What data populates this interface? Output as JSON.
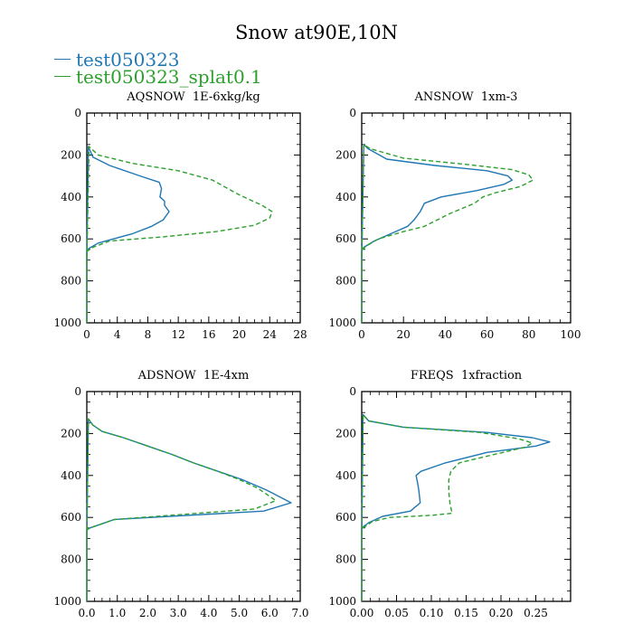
{
  "figure": {
    "title": "Snow at90E,10N",
    "legend": [
      {
        "label": "test050323",
        "color": "#1f77b4",
        "dash": "solid"
      },
      {
        "label": "test050323_splat0.1",
        "color": "#2ca02c",
        "dash": "dashed"
      }
    ]
  },
  "chart_data": [
    {
      "type": "line",
      "title": "AQSNOW  1E-6xkg/kg",
      "xlabel": "",
      "ylabel": "",
      "xlim": [
        0,
        28
      ],
      "ylim": [
        1000,
        0
      ],
      "xticks": [
        0,
        4,
        8,
        12,
        16,
        20,
        24,
        28
      ],
      "xtick_labels": [
        "0",
        "4",
        "8",
        "12",
        "16",
        "20",
        "24",
        "28"
      ],
      "yticks": [
        0,
        200,
        400,
        600,
        800,
        1000
      ],
      "ytick_labels": [
        "0",
        "200",
        "400",
        "600",
        "800",
        "1000"
      ],
      "series": [
        {
          "name": "test050323",
          "color": "#1f77b4",
          "dash": "solid",
          "x": [
            0,
            0,
            0.2,
            0.8,
            3,
            7,
            9.5,
            9.8,
            9.6,
            10.2,
            10.2,
            10.8,
            10,
            8.5,
            6,
            1.5,
            0.3,
            0,
            0,
            0
          ],
          "y": [
            1000,
            700,
            160,
            210,
            250,
            300,
            330,
            360,
            400,
            420,
            440,
            470,
            510,
            540,
            575,
            620,
            645,
            655,
            700,
            1000
          ]
        },
        {
          "name": "test050323_splat0.1",
          "color": "#2ca02c",
          "dash": "dashed",
          "x": [
            0,
            0,
            0.3,
            1.5,
            6,
            12,
            16.5,
            20,
            23,
            24.3,
            24,
            22,
            17,
            10,
            3,
            0.8,
            0,
            0
          ],
          "y": [
            1000,
            700,
            160,
            200,
            240,
            275,
            320,
            390,
            440,
            470,
            500,
            535,
            565,
            590,
            610,
            640,
            660,
            1000
          ]
        }
      ]
    },
    {
      "type": "line",
      "title": "ANSNOW  1xm-3",
      "xlabel": "",
      "ylabel": "",
      "xlim": [
        0,
        100
      ],
      "ylim": [
        1000,
        0
      ],
      "xticks": [
        0,
        20,
        40,
        60,
        80,
        100
      ],
      "xtick_labels": [
        "0",
        "20",
        "40",
        "60",
        "80",
        "100"
      ],
      "yticks": [
        0,
        200,
        400,
        600,
        800,
        1000
      ],
      "ytick_labels": [
        "0",
        "200",
        "400",
        "600",
        "800",
        "1000"
      ],
      "series": [
        {
          "name": "test050323",
          "color": "#1f77b4",
          "dash": "solid",
          "x": [
            0,
            0,
            1,
            3,
            12,
            35,
            60,
            70,
            72,
            68,
            55,
            38,
            30,
            28,
            25,
            22,
            14,
            6,
            1,
            0,
            0
          ],
          "y": [
            1000,
            700,
            150,
            170,
            220,
            250,
            275,
            300,
            320,
            340,
            370,
            400,
            430,
            470,
            510,
            540,
            575,
            610,
            640,
            655,
            1000
          ]
        },
        {
          "name": "test050323_splat0.1",
          "color": "#2ca02c",
          "dash": "dashed",
          "x": [
            0,
            0,
            1,
            4,
            20,
            50,
            72,
            80,
            82,
            76,
            64,
            58,
            54,
            42,
            30,
            20,
            8,
            2,
            0,
            0
          ],
          "y": [
            1000,
            700,
            150,
            170,
            215,
            245,
            270,
            295,
            320,
            350,
            380,
            400,
            430,
            480,
            540,
            565,
            600,
            635,
            655,
            1000
          ]
        }
      ]
    },
    {
      "type": "line",
      "title": "ADSNOW  1E-4xm",
      "xlabel": "",
      "ylabel": "",
      "xlim": [
        0,
        7
      ],
      "ylim": [
        1000,
        0
      ],
      "xticks": [
        0,
        1,
        2,
        3,
        4,
        5,
        6,
        7
      ],
      "xtick_labels": [
        "0.0",
        "1.0",
        "2.0",
        "3.0",
        "4.0",
        "5.0",
        "6.0",
        "7.0"
      ],
      "yticks": [
        0,
        200,
        400,
        600,
        800,
        1000
      ],
      "ytick_labels": [
        "0",
        "200",
        "400",
        "600",
        "800",
        "1000"
      ],
      "series": [
        {
          "name": "test050323",
          "color": "#1f77b4",
          "dash": "solid",
          "x": [
            0,
            0,
            0.05,
            0.2,
            0.5,
            1.2,
            2.0,
            2.8,
            3.5,
            4.3,
            5.1,
            5.9,
            6.7,
            5.8,
            0.9,
            0.5,
            0.1,
            0,
            0
          ],
          "y": [
            1000,
            700,
            130,
            160,
            190,
            220,
            260,
            300,
            340,
            380,
            420,
            470,
            530,
            570,
            610,
            630,
            650,
            660,
            1000
          ]
        },
        {
          "name": "test050323_splat0.1",
          "color": "#2ca02c",
          "dash": "dashed",
          "x": [
            0,
            0,
            0.05,
            0.2,
            0.5,
            1.2,
            2.0,
            2.8,
            3.5,
            4.3,
            5.0,
            5.6,
            6.2,
            5.5,
            0.9,
            0.5,
            0.1,
            0,
            0
          ],
          "y": [
            1000,
            700,
            130,
            160,
            190,
            220,
            260,
            300,
            340,
            380,
            420,
            460,
            520,
            560,
            610,
            630,
            650,
            660,
            1000
          ]
        }
      ]
    },
    {
      "type": "line",
      "title": "FREQS  1xfraction",
      "xlabel": "",
      "ylabel": "",
      "xlim": [
        0,
        0.3
      ],
      "ylim": [
        1000,
        0
      ],
      "xticks": [
        0,
        0.05,
        0.1,
        0.15,
        0.2,
        0.25,
        0.3
      ],
      "xtick_labels": [
        "0.00",
        "0.05",
        "0.10",
        "0.15",
        "0.20",
        "0.25",
        ""
      ],
      "yticks": [
        0,
        200,
        400,
        600,
        800,
        1000
      ],
      "ytick_labels": [
        "0",
        "200",
        "400",
        "600",
        "800",
        "1000"
      ],
      "series": [
        {
          "name": "test050323",
          "color": "#1f77b4",
          "dash": "solid",
          "x": [
            0,
            0,
            0.002,
            0.01,
            0.06,
            0.18,
            0.245,
            0.27,
            0.25,
            0.18,
            0.12,
            0.085,
            0.078,
            0.08,
            0.082,
            0.084,
            0.07,
            0.03,
            0.01,
            0,
            0
          ],
          "y": [
            1000,
            700,
            110,
            140,
            170,
            195,
            220,
            240,
            260,
            290,
            340,
            380,
            400,
            430,
            470,
            530,
            570,
            595,
            625,
            650,
            1000
          ]
        },
        {
          "name": "test050323_splat0.1",
          "color": "#2ca02c",
          "dash": "dashed",
          "x": [
            0,
            0,
            0.002,
            0.01,
            0.06,
            0.17,
            0.225,
            0.245,
            0.235,
            0.19,
            0.14,
            0.128,
            0.125,
            0.125,
            0.127,
            0.13,
            0.1,
            0.04,
            0.015,
            0,
            0
          ],
          "y": [
            1000,
            700,
            110,
            140,
            170,
            195,
            225,
            245,
            265,
            300,
            340,
            380,
            420,
            480,
            540,
            580,
            590,
            600,
            620,
            655,
            1000
          ]
        }
      ]
    }
  ]
}
